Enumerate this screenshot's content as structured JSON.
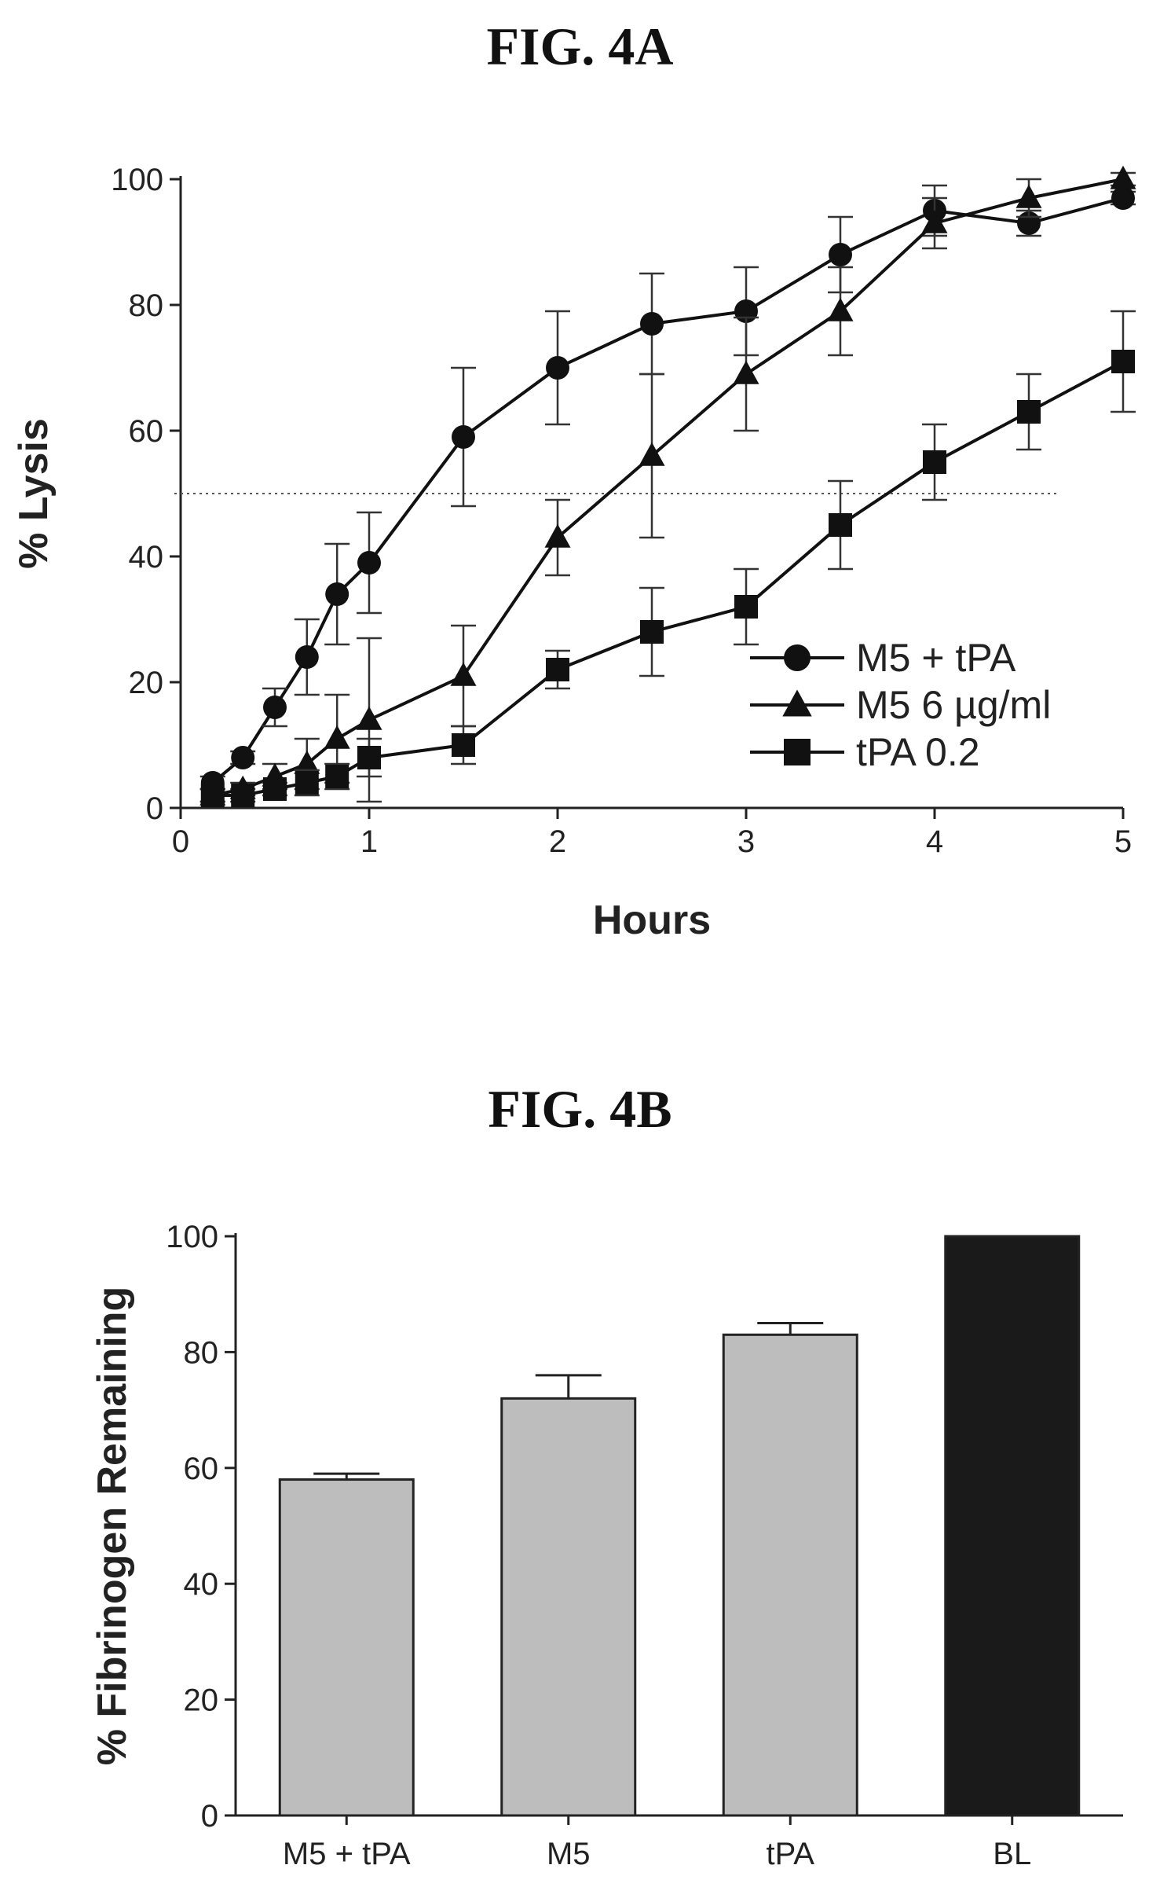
{
  "figures": {
    "a_title": "FIG. 4A",
    "b_title": "FIG. 4B"
  },
  "chart_data": [
    {
      "type": "line",
      "xlabel": "Hours",
      "ylabel": "% Lysis",
      "xlim": [
        0,
        5
      ],
      "ylim": [
        0,
        100
      ],
      "xticks": [
        0,
        1,
        2,
        3,
        4,
        5
      ],
      "yticks": [
        0,
        20,
        40,
        60,
        80,
        100
      ],
      "grid": false,
      "legend_position": "bottom-right",
      "reference_line": {
        "y": 50,
        "style": "dotted"
      },
      "series": [
        {
          "name": "M5 + tPA",
          "marker": "circle",
          "x": [
            0.17,
            0.33,
            0.5,
            0.67,
            0.83,
            1,
            1.5,
            2,
            2.5,
            3,
            3.5,
            4,
            4.5,
            5
          ],
          "y": [
            4,
            8,
            16,
            24,
            34,
            39,
            59,
            70,
            77,
            79,
            88,
            95,
            93,
            97
          ],
          "error": [
            1,
            1,
            3,
            6,
            8,
            8,
            11,
            9,
            8,
            7,
            6,
            4,
            2,
            1
          ]
        },
        {
          "name": "M5 6 µg/ml",
          "marker": "triangle",
          "x": [
            0.17,
            0.33,
            0.5,
            0.67,
            0.83,
            1,
            1.5,
            2,
            2.5,
            3,
            3.5,
            4,
            4.5,
            5
          ],
          "y": [
            2,
            3,
            5,
            7,
            11,
            14,
            21,
            43,
            56,
            69,
            79,
            93,
            97,
            100
          ],
          "error": [
            1,
            1,
            2,
            4,
            7,
            13,
            8,
            6,
            13,
            9,
            7,
            4,
            3,
            1
          ]
        },
        {
          "name": "tPA 0.2",
          "marker": "square",
          "x": [
            0.17,
            0.33,
            0.5,
            0.67,
            0.83,
            1,
            1.5,
            2,
            2.5,
            3,
            3.5,
            4,
            4.5,
            5
          ],
          "y": [
            2,
            2,
            3,
            4,
            5,
            8,
            10,
            22,
            28,
            32,
            45,
            55,
            63,
            71
          ],
          "error": [
            1,
            1,
            1,
            2,
            2,
            3,
            3,
            3,
            7,
            6,
            7,
            6,
            6,
            8
          ]
        }
      ]
    },
    {
      "type": "bar",
      "ylabel": "% Fibrinogen Remaining",
      "xlabel": "",
      "ylim": [
        0,
        100
      ],
      "yticks": [
        0,
        20,
        40,
        60,
        80,
        100
      ],
      "grid": false,
      "categories": [
        "M5 + tPA",
        "M5",
        "tPA",
        "BL"
      ],
      "values": [
        58,
        72,
        83,
        100
      ],
      "error": [
        1,
        4,
        2,
        0
      ],
      "colors": [
        "#bdbdbd",
        "#bdbdbd",
        "#bdbdbd",
        "#1a1a1a"
      ]
    }
  ]
}
